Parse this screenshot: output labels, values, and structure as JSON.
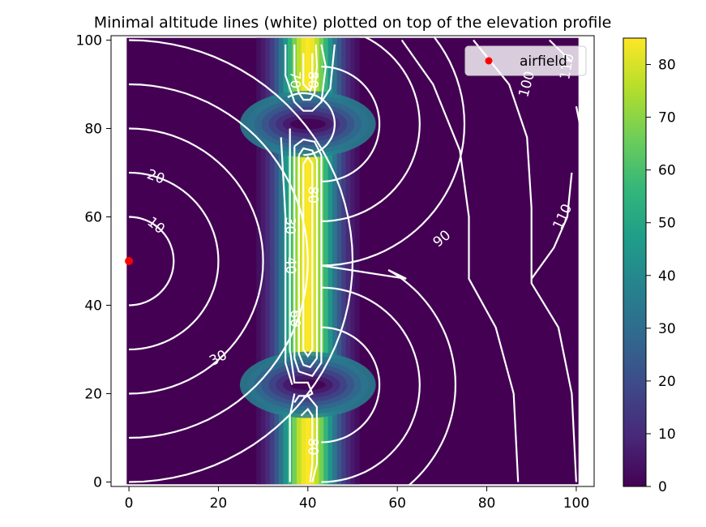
{
  "chart_data": {
    "type": "heatmap",
    "title": "Minimal altitude lines (white) plotted on top of the elevation profile",
    "xlabel": "",
    "ylabel": "",
    "xlim": [
      -4,
      104
    ],
    "ylim": [
      -1,
      101
    ],
    "x_ticks": [
      0,
      20,
      40,
      60,
      80,
      100
    ],
    "y_ticks": [
      0,
      20,
      40,
      60,
      80,
      100
    ],
    "grid": false,
    "colormap": "viridis",
    "colormap_stops": [
      "#440154",
      "#482878",
      "#3e4989",
      "#31688e",
      "#26828e",
      "#1f9e89",
      "#35b779",
      "#6ece58",
      "#b5de2b",
      "#fde725"
    ],
    "elevation_profile": {
      "ridge_center_x": 40,
      "ridge_peak": 85,
      "ridge_band_x": [
        29,
        51
      ],
      "passes": [
        {
          "x": 40,
          "y": 81,
          "min": 0
        },
        {
          "x": 40,
          "y": 22,
          "min": 0
        }
      ],
      "background": 0
    },
    "colorbar": {
      "range": [
        0,
        85
      ],
      "ticks": [
        0,
        10,
        20,
        30,
        40,
        50,
        60,
        70,
        80
      ]
    },
    "contour_color": "#ffffff",
    "contour_labels": [
      {
        "text": "10",
        "x": 6,
        "y": 58,
        "angle": 38
      },
      {
        "text": "20",
        "x": 6,
        "y": 69,
        "angle": 20
      },
      {
        "text": "30",
        "x": 20,
        "y": 28,
        "angle": -28
      },
      {
        "text": "30",
        "x": 36,
        "y": 58,
        "angle": 90
      },
      {
        "text": "40",
        "x": 36,
        "y": 49,
        "angle": 90
      },
      {
        "text": "60",
        "x": 37,
        "y": 37,
        "angle": 90
      },
      {
        "text": "70",
        "x": 37,
        "y": 91,
        "angle": 90
      },
      {
        "text": "80",
        "x": 41,
        "y": 91,
        "angle": 90
      },
      {
        "text": "80",
        "x": 41,
        "y": 65,
        "angle": 90
      },
      {
        "text": "80",
        "x": 41,
        "y": 8,
        "angle": 90
      },
      {
        "text": "90",
        "x": 70,
        "y": 55,
        "angle": -40
      },
      {
        "text": "100",
        "x": 89,
        "y": 90,
        "angle": -75
      },
      {
        "text": "110",
        "x": 97,
        "y": 60,
        "angle": -65
      },
      {
        "text": "110",
        "x": 98,
        "y": 94,
        "angle": -80
      }
    ],
    "series": [
      {
        "name": "airfield",
        "type": "scatter",
        "x": [
          0
        ],
        "y": [
          50
        ],
        "color": "#ff0000"
      }
    ],
    "legend": {
      "placement": "upper right",
      "entries": [
        "airfield"
      ]
    }
  }
}
